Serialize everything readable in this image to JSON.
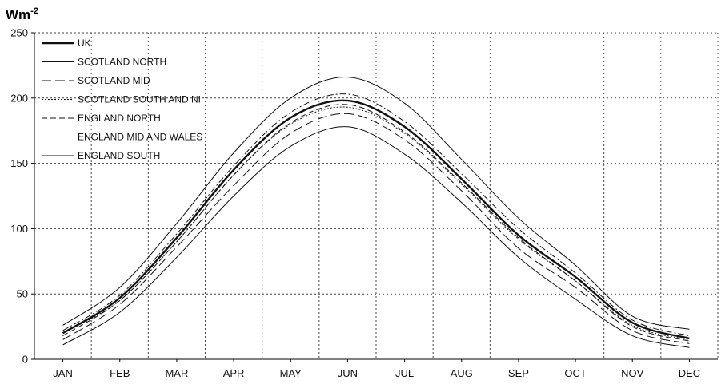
{
  "chart_data": {
    "type": "line",
    "ylabel": "Wm",
    "ylabel_superscript": "-2",
    "categories": [
      "JAN",
      "FEB",
      "MAR",
      "APR",
      "MAY",
      "JUN",
      "JUL",
      "AUG",
      "SEP",
      "OCT",
      "NOV",
      "DEC"
    ],
    "ylim": [
      0,
      250
    ],
    "yticks": [
      0,
      50,
      100,
      150,
      200,
      250
    ],
    "grid": true,
    "legend_position": "top-left",
    "series": [
      {
        "name": "UK",
        "style": "thick",
        "values": [
          20,
          47,
          93,
          145,
          185,
          198,
          178,
          138,
          95,
          63,
          28,
          16
        ]
      },
      {
        "name": "SCOTLAND NORTH",
        "style": "thin",
        "values": [
          11,
          36,
          78,
          125,
          163,
          178,
          157,
          120,
          78,
          46,
          18,
          9
        ]
      },
      {
        "name": "SCOTLAND MID",
        "style": "longdash",
        "values": [
          15,
          42,
          86,
          133,
          173,
          188,
          168,
          129,
          85,
          55,
          22,
          12
        ]
      },
      {
        "name": "SCOTLAND SOUTH AND NI",
        "style": "dotted",
        "values": [
          20,
          45,
          90,
          141,
          180,
          193,
          173,
          134,
          92,
          60,
          26,
          15
        ]
      },
      {
        "name": "ENGLAND NORTH",
        "style": "dash",
        "values": [
          18,
          45,
          90,
          141,
          181,
          195,
          174,
          135,
          93,
          60,
          25,
          14
        ]
      },
      {
        "name": "ENGLAND MID AND WALES",
        "style": "dashdot",
        "values": [
          22,
          49,
          96,
          148,
          189,
          203,
          182,
          142,
          100,
          66,
          30,
          18
        ]
      },
      {
        "name": "ENGLAND SOUTH",
        "style": "thin",
        "values": [
          26,
          55,
          104,
          158,
          200,
          216,
          196,
          153,
          108,
          72,
          33,
          23
        ]
      }
    ]
  }
}
